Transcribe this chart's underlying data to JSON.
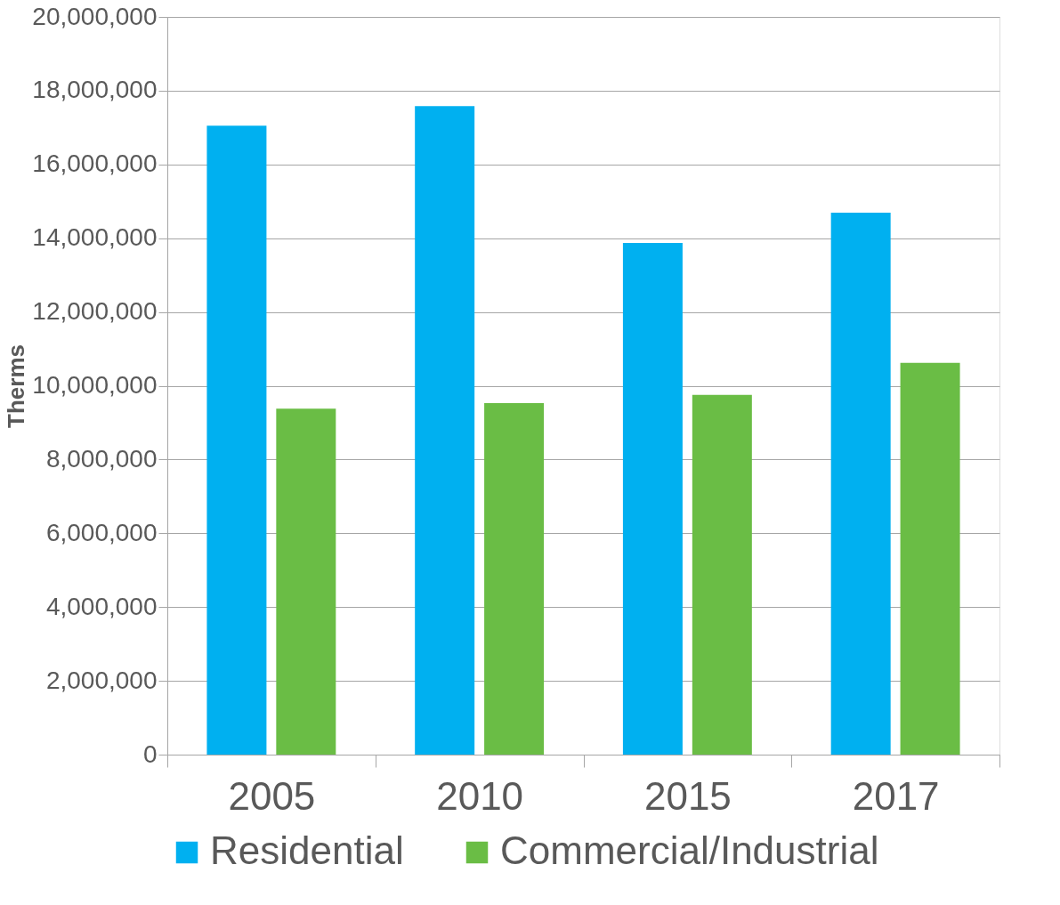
{
  "chart_data": {
    "type": "bar",
    "ylabel": "Therms",
    "categories": [
      "2005",
      "2010",
      "2015",
      "2017"
    ],
    "series": [
      {
        "name": "Residential",
        "color": "#00b0f0",
        "values": [
          17050000,
          17580000,
          13870000,
          14690000
        ]
      },
      {
        "name": "Commercial/Industrial",
        "color": "#6abd45",
        "values": [
          9380000,
          9530000,
          9750000,
          10620000
        ]
      }
    ],
    "ylim": [
      0,
      20000000
    ],
    "yticks": [
      0,
      {
        "value": 2000000,
        "label": "2,000,000"
      },
      {
        "value": 4000000,
        "label": "4,000,000"
      },
      {
        "value": 6000000,
        "label": "6,000,000"
      },
      {
        "value": 8000000,
        "label": "8,000,000"
      },
      {
        "value": 10000000,
        "label": "10,000,000"
      },
      {
        "value": 12000000,
        "label": "12,000,000"
      },
      {
        "value": 14000000,
        "label": "14,000,000"
      },
      {
        "value": 16000000,
        "label": "16,000,000"
      },
      {
        "value": 18000000,
        "label": "18,000,000"
      },
      {
        "value": 20000000,
        "label": "20,000,000"
      }
    ],
    "grid": "y",
    "legend": "bottom"
  }
}
